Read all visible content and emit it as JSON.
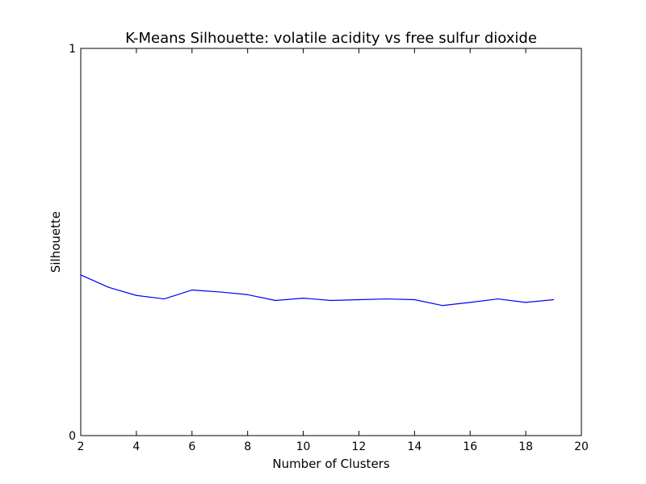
{
  "chart_data": {
    "type": "line",
    "title": "K-Means Silhouette: volatile acidity vs free sulfur dioxide",
    "xlabel": "Number of Clusters",
    "ylabel": "Silhouette",
    "xlim": [
      2,
      20
    ],
    "ylim": [
      0,
      1
    ],
    "xticks": [
      "2",
      "4",
      "6",
      "8",
      "10",
      "12",
      "14",
      "16",
      "18",
      "20"
    ],
    "yticks": [
      "0",
      "1"
    ],
    "grid": false,
    "line_color": "#0000ff",
    "series": [
      {
        "x": [
          2,
          3,
          4,
          5,
          6,
          7,
          8,
          9,
          10,
          11,
          12,
          13,
          14,
          15,
          16,
          17,
          18,
          19
        ],
        "values": [
          0.415,
          0.383,
          0.362,
          0.353,
          0.376,
          0.371,
          0.364,
          0.349,
          0.355,
          0.349,
          0.351,
          0.353,
          0.351,
          0.336,
          0.344,
          0.353,
          0.344,
          0.351
        ]
      }
    ]
  }
}
